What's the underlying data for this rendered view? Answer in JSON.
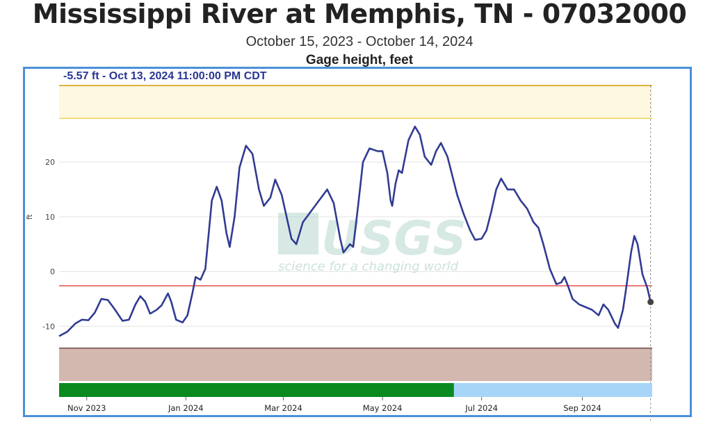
{
  "header": {
    "title": "Mississippi River at Memphis, TN - 07032000",
    "date_range": "October 15, 2023 - October 14, 2024"
  },
  "readout": "-5.57 ft - Oct 13, 2024 11:00:00 PM CDT",
  "watermark": {
    "logo": "USGS",
    "tagline": "science for a changing world"
  },
  "chart_data": {
    "type": "line",
    "title": "Gage height, feet",
    "ylabel": "ft",
    "xlabel": "",
    "xlim": [
      "2023-10-15",
      "2024-10-14"
    ],
    "ylim": [
      -20,
      34
    ],
    "yticks": [
      -10,
      0,
      10,
      20
    ],
    "xticks": [
      {
        "date": "2023-11-01",
        "label": "Nov 2023"
      },
      {
        "date": "2024-01-01",
        "label": "Jan 2024"
      },
      {
        "date": "2024-03-01",
        "label": "Mar 2024"
      },
      {
        "date": "2024-05-01",
        "label": "May 2024"
      },
      {
        "date": "2024-07-01",
        "label": "Jul 2024"
      },
      {
        "date": "2024-09-01",
        "label": "Sep 2024"
      }
    ],
    "grid": true,
    "bands": [
      {
        "from": 28,
        "to": 34,
        "color": "#fff8e1",
        "edge_color": "#f5cc33"
      },
      {
        "from": -20,
        "to": -14,
        "color": "#d3b8af",
        "edge_color": "#5d2b2b"
      }
    ],
    "reference_lines": [
      {
        "value": -2.6,
        "color": "#e53935"
      }
    ],
    "approval_bar": [
      {
        "from": "2023-10-15",
        "to": "2024-06-14",
        "color": "#0a8a1f"
      },
      {
        "from": "2024-06-14",
        "to": "2024-10-14",
        "color": "#a7d5f7"
      }
    ],
    "series": [
      {
        "color": "#303b93",
        "points": [
          [
            "2023-10-15",
            -11.8
          ],
          [
            "2023-10-20",
            -11.0
          ],
          [
            "2023-10-25",
            -9.5
          ],
          [
            "2023-10-29",
            -8.8
          ],
          [
            "2023-11-02",
            -8.9
          ],
          [
            "2023-11-06",
            -7.5
          ],
          [
            "2023-11-10",
            -5.0
          ],
          [
            "2023-11-14",
            -5.2
          ],
          [
            "2023-11-18",
            -6.8
          ],
          [
            "2023-11-23",
            -9.0
          ],
          [
            "2023-11-27",
            -8.8
          ],
          [
            "2023-12-01",
            -6.0
          ],
          [
            "2023-12-04",
            -4.5
          ],
          [
            "2023-12-07",
            -5.5
          ],
          [
            "2023-12-10",
            -7.7
          ],
          [
            "2023-12-14",
            -7.0
          ],
          [
            "2023-12-17",
            -6.2
          ],
          [
            "2023-12-21",
            -4.0
          ],
          [
            "2023-12-23",
            -5.5
          ],
          [
            "2023-12-26",
            -8.8
          ],
          [
            "2023-12-30",
            -9.3
          ],
          [
            "2024-01-02",
            -8.0
          ],
          [
            "2024-01-05",
            -4.0
          ],
          [
            "2024-01-07",
            -1.0
          ],
          [
            "2024-01-10",
            -1.5
          ],
          [
            "2024-01-13",
            0.5
          ],
          [
            "2024-01-17",
            13.0
          ],
          [
            "2024-01-20",
            15.5
          ],
          [
            "2024-01-23",
            13.0
          ],
          [
            "2024-01-26",
            7.0
          ],
          [
            "2024-01-28",
            4.5
          ],
          [
            "2024-01-31",
            10.0
          ],
          [
            "2024-02-03",
            19.0
          ],
          [
            "2024-02-07",
            23.0
          ],
          [
            "2024-02-11",
            21.5
          ],
          [
            "2024-02-15",
            15.0
          ],
          [
            "2024-02-18",
            12.0
          ],
          [
            "2024-02-22",
            13.5
          ],
          [
            "2024-02-25",
            16.8
          ],
          [
            "2024-02-29",
            14.0
          ],
          [
            "2024-03-03",
            10.0
          ],
          [
            "2024-03-06",
            6.0
          ],
          [
            "2024-03-09",
            5.0
          ],
          [
            "2024-03-13",
            9.0
          ],
          [
            "2024-03-18",
            11.0
          ],
          [
            "2024-03-23",
            13.0
          ],
          [
            "2024-03-28",
            15.0
          ],
          [
            "2024-04-01",
            12.5
          ],
          [
            "2024-04-05",
            6.0
          ],
          [
            "2024-04-07",
            3.5
          ],
          [
            "2024-04-11",
            5.0
          ],
          [
            "2024-04-13",
            4.5
          ],
          [
            "2024-04-16",
            12.0
          ],
          [
            "2024-04-19",
            20.0
          ],
          [
            "2024-04-23",
            22.5
          ],
          [
            "2024-04-28",
            22.0
          ],
          [
            "2024-05-01",
            22.0
          ],
          [
            "2024-05-04",
            18.0
          ],
          [
            "2024-05-06",
            13.0
          ],
          [
            "2024-05-07",
            12.0
          ],
          [
            "2024-05-09",
            16.0
          ],
          [
            "2024-05-11",
            18.5
          ],
          [
            "2024-05-13",
            18.0
          ],
          [
            "2024-05-17",
            24.0
          ],
          [
            "2024-05-21",
            26.5
          ],
          [
            "2024-05-24",
            25.0
          ],
          [
            "2024-05-27",
            21.0
          ],
          [
            "2024-05-31",
            19.5
          ],
          [
            "2024-06-03",
            22.0
          ],
          [
            "2024-06-06",
            23.5
          ],
          [
            "2024-06-10",
            21.0
          ],
          [
            "2024-06-13",
            17.5
          ],
          [
            "2024-06-16",
            14.0
          ],
          [
            "2024-06-20",
            10.5
          ],
          [
            "2024-06-24",
            7.5
          ],
          [
            "2024-06-27",
            5.8
          ],
          [
            "2024-07-01",
            6.0
          ],
          [
            "2024-07-04",
            7.5
          ],
          [
            "2024-07-07",
            11.0
          ],
          [
            "2024-07-10",
            15.0
          ],
          [
            "2024-07-13",
            17.0
          ],
          [
            "2024-07-17",
            15.0
          ],
          [
            "2024-07-21",
            15.0
          ],
          [
            "2024-07-25",
            13.0
          ],
          [
            "2024-07-29",
            11.5
          ],
          [
            "2024-08-02",
            9.0
          ],
          [
            "2024-08-05",
            8.0
          ],
          [
            "2024-08-08",
            5.0
          ],
          [
            "2024-08-12",
            0.5
          ],
          [
            "2024-08-16",
            -2.3
          ],
          [
            "2024-08-19",
            -2.0
          ],
          [
            "2024-08-21",
            -1.0
          ],
          [
            "2024-08-23",
            -2.5
          ],
          [
            "2024-08-26",
            -5.0
          ],
          [
            "2024-08-30",
            -6.0
          ],
          [
            "2024-09-03",
            -6.5
          ],
          [
            "2024-09-07",
            -7.0
          ],
          [
            "2024-09-11",
            -8.0
          ],
          [
            "2024-09-14",
            -6.0
          ],
          [
            "2024-09-17",
            -7.0
          ],
          [
            "2024-09-21",
            -9.5
          ],
          [
            "2024-09-23",
            -10.3
          ],
          [
            "2024-09-26",
            -7.0
          ],
          [
            "2024-09-28",
            -3.0
          ],
          [
            "2024-10-01",
            3.5
          ],
          [
            "2024-10-03",
            6.5
          ],
          [
            "2024-10-05",
            5.0
          ],
          [
            "2024-10-08",
            -0.5
          ],
          [
            "2024-10-11",
            -3.0
          ],
          [
            "2024-10-13",
            -5.57
          ]
        ]
      }
    ],
    "marker": {
      "date": "2024-10-13",
      "value": -5.57
    }
  }
}
